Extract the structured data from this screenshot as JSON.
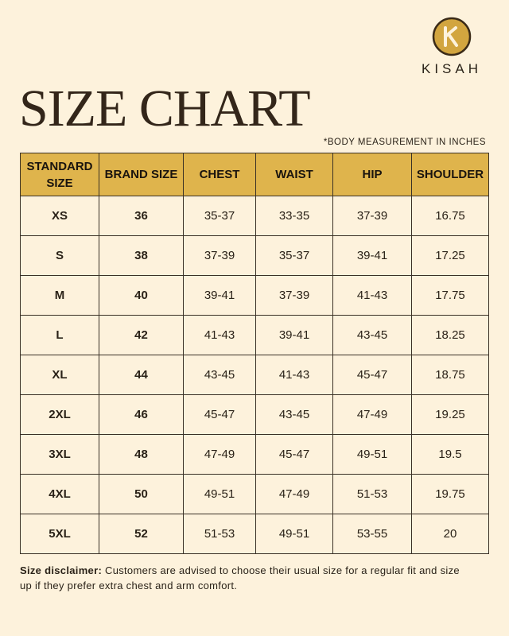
{
  "brand": "KISAH",
  "title": "SIZE CHART",
  "note": "*BODY MEASUREMENT IN INCHES",
  "table": {
    "headers": [
      "STANDARD SIZE",
      "BRAND SIZE",
      "CHEST",
      "WAIST",
      "HIP",
      "SHOULDER"
    ],
    "rows": [
      [
        "XS",
        "36",
        "35-37",
        "33-35",
        "37-39",
        "16.75"
      ],
      [
        "S",
        "38",
        "37-39",
        "35-37",
        "39-41",
        "17.25"
      ],
      [
        "M",
        "40",
        "39-41",
        "37-39",
        "41-43",
        "17.75"
      ],
      [
        "L",
        "42",
        "41-43",
        "39-41",
        "43-45",
        "18.25"
      ],
      [
        "XL",
        "44",
        "43-45",
        "41-43",
        "45-47",
        "18.75"
      ],
      [
        "2XL",
        "46",
        "45-47",
        "43-45",
        "47-49",
        "19.25"
      ],
      [
        "3XL",
        "48",
        "47-49",
        "45-47",
        "49-51",
        "19.5"
      ],
      [
        "4XL",
        "50",
        "49-51",
        "47-49",
        "51-53",
        "19.75"
      ],
      [
        "5XL",
        "52",
        "51-53",
        "49-51",
        "53-55",
        "20"
      ]
    ]
  },
  "disclaimer": {
    "label": "Size disclaimer:",
    "text": "Customers are advised to choose their usual size for a regular fit and size up if they prefer extra chest and arm comfort."
  }
}
